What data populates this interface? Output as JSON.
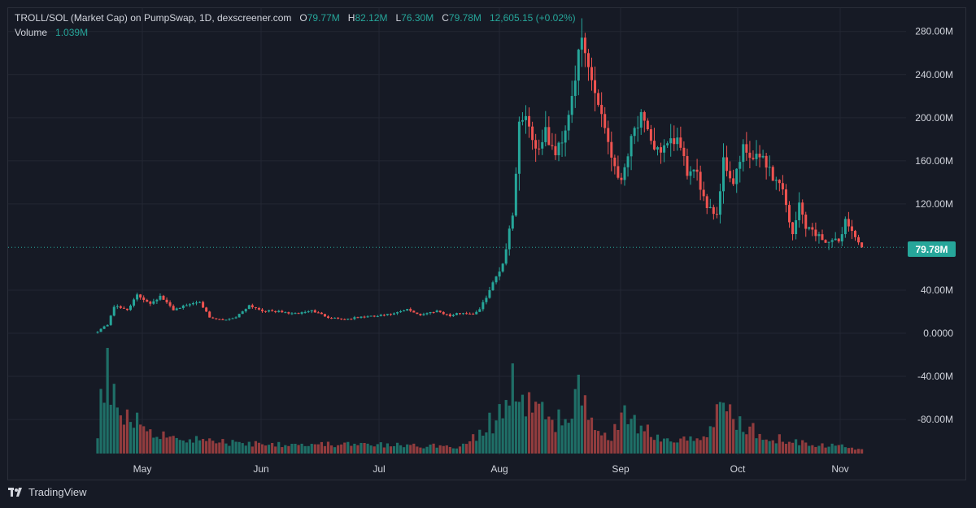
{
  "header": {
    "symbol": "TROLL/SOL (Market Cap) on PumpSwap, 1D, dexscreener.com",
    "open_label": "O",
    "open_value": "79.77M",
    "high_label": "H",
    "high_value": "82.12M",
    "low_label": "L",
    "low_value": "76.30M",
    "close_label": "C",
    "close_value": "79.78M",
    "change": "12,605.15 (+0.02%)"
  },
  "volume": {
    "label": "Volume",
    "value": "1.039M"
  },
  "last_price_badge": "79.78M",
  "footer": {
    "brand": "TradingView",
    "logo_icon": "tradingview-logo-icon"
  },
  "colors": {
    "up": "#26a69a",
    "down": "#ef5350",
    "up_volume": "#1f6f67",
    "down_volume": "#913c3e",
    "background": "#161a25",
    "grid": "#232733",
    "text": "#d1d4dc"
  },
  "chart_data": {
    "type": "candlestick",
    "title": "TROLL/SOL (Market Cap) on PumpSwap, 1D, dexscreener.com",
    "xlabel": "",
    "ylabel": "",
    "ylim": [
      -110,
      290
    ],
    "y_ticks": [
      "280.00M",
      "240.00M",
      "200.00M",
      "160.00M",
      "120.00M",
      "40.00M",
      "0.0000",
      "-40.00M",
      "-80.00M"
    ],
    "x_ticks": [
      "May",
      "Jun",
      "Jul",
      "Aug",
      "Sep",
      "Oct",
      "Nov"
    ],
    "grid": true,
    "last_price_line": 79.78,
    "anchors": [
      {
        "day": 0,
        "close": 2
      },
      {
        "day": 3,
        "close": 8
      },
      {
        "day": 5,
        "close": 25
      },
      {
        "day": 9,
        "close": 22
      },
      {
        "day": 12,
        "close": 35
      },
      {
        "day": 16,
        "close": 28
      },
      {
        "day": 19,
        "close": 34
      },
      {
        "day": 23,
        "close": 22
      },
      {
        "day": 27,
        "close": 26
      },
      {
        "day": 31,
        "close": 30
      },
      {
        "day": 34,
        "close": 14
      },
      {
        "day": 38,
        "close": 12
      },
      {
        "day": 42,
        "close": 15
      },
      {
        "day": 46,
        "close": 26
      },
      {
        "day": 50,
        "close": 21
      },
      {
        "day": 55,
        "close": 20
      },
      {
        "day": 60,
        "close": 18
      },
      {
        "day": 65,
        "close": 21
      },
      {
        "day": 70,
        "close": 15
      },
      {
        "day": 75,
        "close": 13
      },
      {
        "day": 80,
        "close": 15
      },
      {
        "day": 85,
        "close": 16
      },
      {
        "day": 90,
        "close": 18
      },
      {
        "day": 94,
        "close": 22
      },
      {
        "day": 98,
        "close": 17
      },
      {
        "day": 103,
        "close": 21
      },
      {
        "day": 107,
        "close": 16
      },
      {
        "day": 110,
        "close": 19
      },
      {
        "day": 114,
        "close": 18
      },
      {
        "day": 116,
        "close": 22
      },
      {
        "day": 119,
        "close": 40
      },
      {
        "day": 123,
        "close": 65
      },
      {
        "day": 126,
        "close": 110
      },
      {
        "day": 128,
        "close": 195
      },
      {
        "day": 130,
        "close": 205
      },
      {
        "day": 133,
        "close": 170
      },
      {
        "day": 136,
        "close": 185
      },
      {
        "day": 139,
        "close": 165
      },
      {
        "day": 142,
        "close": 190
      },
      {
        "day": 145,
        "close": 240
      },
      {
        "day": 147,
        "close": 270
      },
      {
        "day": 150,
        "close": 235
      },
      {
        "day": 153,
        "close": 205
      },
      {
        "day": 156,
        "close": 165
      },
      {
        "day": 159,
        "close": 140
      },
      {
        "day": 162,
        "close": 185
      },
      {
        "day": 165,
        "close": 200
      },
      {
        "day": 168,
        "close": 175
      },
      {
        "day": 172,
        "close": 170
      },
      {
        "day": 176,
        "close": 180
      },
      {
        "day": 179,
        "close": 150
      },
      {
        "day": 182,
        "close": 145
      },
      {
        "day": 185,
        "close": 120
      },
      {
        "day": 188,
        "close": 110
      },
      {
        "day": 190,
        "close": 160
      },
      {
        "day": 193,
        "close": 140
      },
      {
        "day": 196,
        "close": 170
      },
      {
        "day": 199,
        "close": 160
      },
      {
        "day": 202,
        "close": 165
      },
      {
        "day": 205,
        "close": 145
      },
      {
        "day": 208,
        "close": 135
      },
      {
        "day": 211,
        "close": 90
      },
      {
        "day": 213,
        "close": 120
      },
      {
        "day": 215,
        "close": 100
      },
      {
        "day": 217,
        "close": 95
      },
      {
        "day": 219,
        "close": 90
      },
      {
        "day": 222,
        "close": 85
      },
      {
        "day": 225,
        "close": 85
      },
      {
        "day": 227,
        "close": 105
      },
      {
        "day": 230,
        "close": 90
      },
      {
        "day": 232,
        "close": 80
      }
    ],
    "volume_peaks": [
      {
        "day": 0,
        "v": 0.25
      },
      {
        "day": 1,
        "v": 0.65
      },
      {
        "day": 3,
        "v": 1.0
      },
      {
        "day": 6,
        "v": 0.5
      },
      {
        "day": 8,
        "v": 0.45
      },
      {
        "day": 12,
        "v": 0.35
      },
      {
        "day": 17,
        "v": 0.25
      },
      {
        "day": 24,
        "v": 0.18
      },
      {
        "day": 40,
        "v": 0.12
      },
      {
        "day": 110,
        "v": 0.08
      },
      {
        "day": 116,
        "v": 0.2
      },
      {
        "day": 119,
        "v": 0.35
      },
      {
        "day": 121,
        "v": 0.3
      },
      {
        "day": 123,
        "v": 0.55
      },
      {
        "day": 125,
        "v": 0.45
      },
      {
        "day": 126,
        "v": 1.0
      },
      {
        "day": 127,
        "v": 0.85
      },
      {
        "day": 128,
        "v": 0.65
      },
      {
        "day": 130,
        "v": 0.55
      },
      {
        "day": 134,
        "v": 0.5
      },
      {
        "day": 138,
        "v": 0.3
      },
      {
        "day": 146,
        "v": 0.65
      },
      {
        "day": 149,
        "v": 0.4
      },
      {
        "day": 156,
        "v": 0.2
      },
      {
        "day": 162,
        "v": 0.5
      },
      {
        "day": 164,
        "v": 0.3
      },
      {
        "day": 175,
        "v": 0.15
      },
      {
        "day": 186,
        "v": 0.25
      },
      {
        "day": 190,
        "v": 0.6
      },
      {
        "day": 194,
        "v": 0.35
      },
      {
        "day": 205,
        "v": 0.18
      },
      {
        "day": 216,
        "v": 0.12
      },
      {
        "day": 232,
        "v": 0.05
      }
    ]
  }
}
